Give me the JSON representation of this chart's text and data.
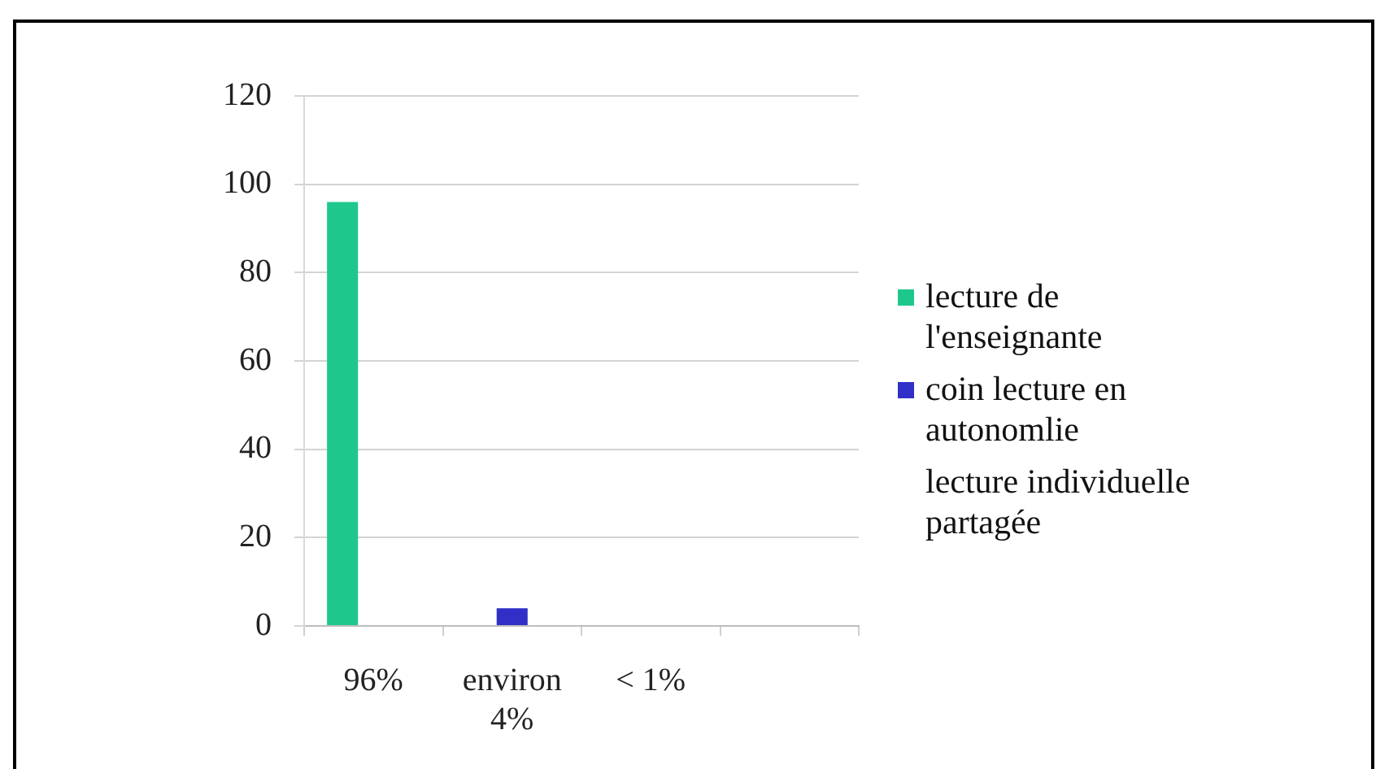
{
  "chart_data": {
    "type": "bar",
    "categories": [
      "96%",
      "environ 4%",
      "< 1%",
      null
    ],
    "series": [
      {
        "name": "lecture de l'enseignante",
        "color": "#1ec88c",
        "values": [
          96,
          null,
          null,
          null
        ]
      },
      {
        "name": "coin lecture en autonomlie",
        "color": "#3030c8",
        "values": [
          null,
          4,
          null,
          null
        ]
      },
      {
        "name": "lecture individuelle partagée",
        "values": [
          null,
          null,
          null,
          null
        ]
      }
    ],
    "ylim": [
      0,
      120
    ],
    "yticks": [
      0,
      20,
      40,
      60,
      80,
      100,
      120
    ],
    "grid": "y",
    "legend": "right"
  }
}
